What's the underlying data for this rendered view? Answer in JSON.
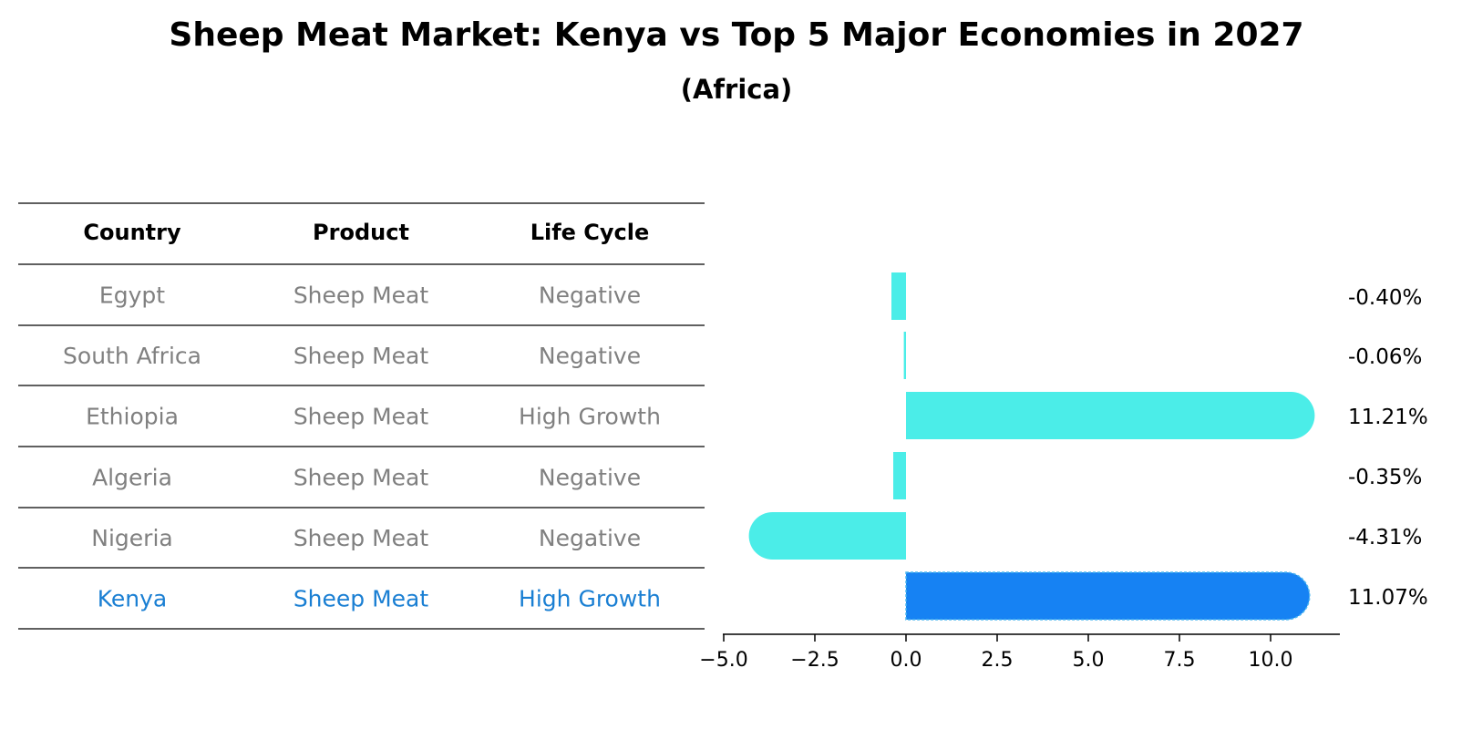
{
  "title": "Sheep Meat Market: Kenya vs Top 5 Major Economies in 2027",
  "subtitle": "(Africa)",
  "colors": {
    "bar": "#4bede8",
    "highlight_bar": "#1682f3",
    "table_text": "#808080",
    "highlight_text": "#1a7fd3",
    "rule": "#000000"
  },
  "table": {
    "headers": [
      "Country",
      "Product",
      "Life Cycle"
    ],
    "rows": [
      {
        "country": "Egypt",
        "product": "Sheep Meat",
        "life_cycle": "Negative",
        "highlight": false
      },
      {
        "country": "South Africa",
        "product": "Sheep Meat",
        "life_cycle": "Negative",
        "highlight": false
      },
      {
        "country": "Ethiopia",
        "product": "Sheep Meat",
        "life_cycle": "High Growth",
        "highlight": false
      },
      {
        "country": "Algeria",
        "product": "Sheep Meat",
        "life_cycle": "Negative",
        "highlight": false
      },
      {
        "country": "Nigeria",
        "product": "Sheep Meat",
        "life_cycle": "Negative",
        "highlight": false
      },
      {
        "country": "Kenya",
        "product": "Sheep Meat",
        "life_cycle": "High Growth",
        "highlight": true
      }
    ]
  },
  "chart_data": {
    "type": "bar",
    "orientation": "horizontal",
    "categories": [
      "Egypt",
      "South Africa",
      "Ethiopia",
      "Algeria",
      "Nigeria",
      "Kenya"
    ],
    "values": [
      -0.4,
      -0.06,
      11.21,
      -0.35,
      -4.31,
      11.07
    ],
    "value_labels": [
      "-0.40%",
      "-0.06%",
      "11.21%",
      "-0.35%",
      "-4.31%",
      "11.07%"
    ],
    "highlight": "Kenya",
    "xlim": [
      -5.0,
      12.0
    ],
    "xticks": [
      -5.0,
      -2.5,
      0.0,
      2.5,
      5.0,
      7.5,
      10.0
    ],
    "xtick_labels": [
      "−5.0",
      "−2.5",
      "0.0",
      "2.5",
      "5.0",
      "7.5",
      "10.0"
    ],
    "grid": false,
    "legend": "none"
  }
}
